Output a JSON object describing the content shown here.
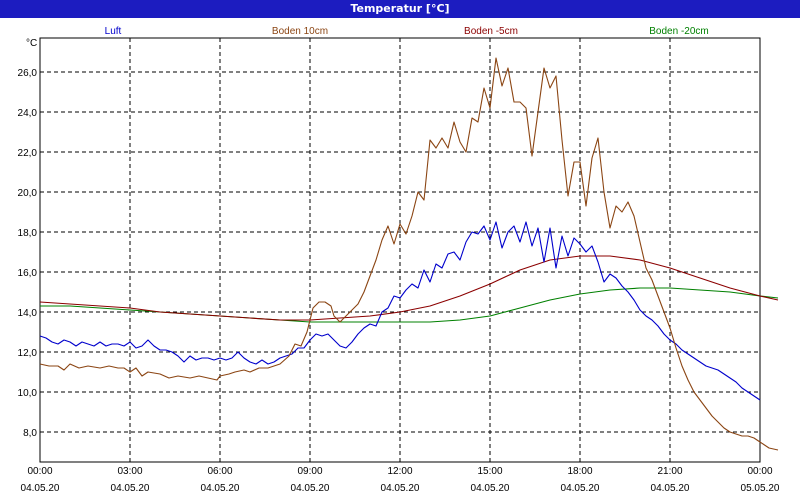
{
  "window": {
    "title": "Temperatur [°C]"
  },
  "chart_data": {
    "type": "line",
    "ylabel": "°C",
    "ylim": [
      6.5,
      27.7
    ],
    "xlim": [
      0,
      24
    ],
    "yticks": [
      8,
      10,
      12,
      14,
      16,
      18,
      20,
      22,
      24,
      26
    ],
    "ytick_labels": [
      "8,0",
      "10,0",
      "12,0",
      "14,0",
      "16,0",
      "18,0",
      "20,0",
      "22,0",
      "24,0",
      "26,0"
    ],
    "xticks": [
      {
        "time": "00:00",
        "date": "04.05.20"
      },
      {
        "time": "03:00",
        "date": "04.05.20"
      },
      {
        "time": "06:00",
        "date": "04.05.20"
      },
      {
        "time": "09:00",
        "date": "04.05.20"
      },
      {
        "time": "12:00",
        "date": "04.05.20"
      },
      {
        "time": "15:00",
        "date": "04.05.20"
      },
      {
        "time": "18:00",
        "date": "04.05.20"
      },
      {
        "time": "21:00",
        "date": "04.05.20"
      },
      {
        "time": "00:00",
        "date": "05.05.20"
      }
    ],
    "grid": true,
    "legend_position": "top",
    "series": [
      {
        "name": "Luft",
        "color": "#0000cc",
        "points": [
          [
            0,
            12.8
          ],
          [
            0.2,
            12.7
          ],
          [
            0.4,
            12.5
          ],
          [
            0.6,
            12.4
          ],
          [
            0.8,
            12.6
          ],
          [
            1.0,
            12.5
          ],
          [
            1.2,
            12.3
          ],
          [
            1.4,
            12.5
          ],
          [
            1.6,
            12.4
          ],
          [
            1.8,
            12.3
          ],
          [
            2.0,
            12.5
          ],
          [
            2.2,
            12.3
          ],
          [
            2.4,
            12.4
          ],
          [
            2.6,
            12.4
          ],
          [
            2.8,
            12.3
          ],
          [
            3.0,
            12.5
          ],
          [
            3.2,
            12.2
          ],
          [
            3.4,
            12.3
          ],
          [
            3.6,
            12.6
          ],
          [
            3.8,
            12.3
          ],
          [
            4.0,
            12.1
          ],
          [
            4.2,
            12.1
          ],
          [
            4.4,
            12.0
          ],
          [
            4.6,
            11.8
          ],
          [
            4.8,
            11.5
          ],
          [
            5.0,
            11.8
          ],
          [
            5.2,
            11.6
          ],
          [
            5.4,
            11.7
          ],
          [
            5.6,
            11.7
          ],
          [
            5.8,
            11.6
          ],
          [
            6.0,
            11.7
          ],
          [
            6.2,
            11.6
          ],
          [
            6.4,
            11.7
          ],
          [
            6.6,
            12.0
          ],
          [
            6.8,
            11.7
          ],
          [
            7.0,
            11.5
          ],
          [
            7.2,
            11.4
          ],
          [
            7.4,
            11.6
          ],
          [
            7.6,
            11.4
          ],
          [
            7.8,
            11.5
          ],
          [
            8.0,
            11.7
          ],
          [
            8.2,
            11.8
          ],
          [
            8.4,
            11.9
          ],
          [
            8.6,
            12.2
          ],
          [
            8.8,
            12.2
          ],
          [
            9.0,
            12.6
          ],
          [
            9.2,
            12.9
          ],
          [
            9.4,
            12.8
          ],
          [
            9.6,
            12.9
          ],
          [
            9.8,
            12.6
          ],
          [
            10.0,
            12.3
          ],
          [
            10.2,
            12.2
          ],
          [
            10.4,
            12.5
          ],
          [
            10.6,
            12.9
          ],
          [
            10.8,
            13.2
          ],
          [
            11.0,
            13.4
          ],
          [
            11.2,
            13.3
          ],
          [
            11.4,
            14.0
          ],
          [
            11.6,
            14.2
          ],
          [
            11.8,
            14.8
          ],
          [
            12.0,
            14.7
          ],
          [
            12.2,
            15.1
          ],
          [
            12.4,
            15.4
          ],
          [
            12.6,
            15.2
          ],
          [
            12.8,
            16.1
          ],
          [
            13.0,
            15.5
          ],
          [
            13.2,
            16.4
          ],
          [
            13.4,
            16.2
          ],
          [
            13.6,
            16.9
          ],
          [
            13.8,
            17.0
          ],
          [
            14.0,
            16.6
          ],
          [
            14.2,
            17.5
          ],
          [
            14.4,
            18.0
          ],
          [
            14.6,
            17.9
          ],
          [
            14.8,
            18.3
          ],
          [
            15.0,
            17.6
          ],
          [
            15.2,
            18.5
          ],
          [
            15.4,
            17.2
          ],
          [
            15.6,
            18.0
          ],
          [
            15.8,
            18.3
          ],
          [
            16.0,
            17.5
          ],
          [
            16.2,
            18.5
          ],
          [
            16.4,
            17.3
          ],
          [
            16.6,
            18.2
          ],
          [
            16.8,
            16.5
          ],
          [
            17.0,
            18.2
          ],
          [
            17.2,
            16.2
          ],
          [
            17.4,
            17.8
          ],
          [
            17.6,
            16.8
          ],
          [
            17.8,
            17.7
          ],
          [
            18.0,
            17.4
          ],
          [
            18.2,
            17.0
          ],
          [
            18.4,
            17.3
          ],
          [
            18.6,
            16.5
          ],
          [
            18.8,
            15.5
          ],
          [
            19.0,
            15.9
          ],
          [
            19.2,
            15.7
          ],
          [
            19.4,
            15.3
          ],
          [
            19.6,
            15.0
          ],
          [
            19.8,
            14.6
          ],
          [
            20.0,
            14.1
          ],
          [
            20.2,
            13.8
          ],
          [
            20.4,
            13.6
          ],
          [
            20.6,
            13.3
          ],
          [
            20.8,
            12.9
          ],
          [
            21.0,
            12.6
          ],
          [
            21.2,
            12.4
          ],
          [
            21.4,
            12.1
          ],
          [
            21.6,
            11.9
          ],
          [
            21.8,
            11.7
          ],
          [
            22.0,
            11.5
          ],
          [
            22.2,
            11.3
          ],
          [
            22.4,
            11.2
          ],
          [
            22.6,
            11.1
          ],
          [
            22.8,
            10.9
          ],
          [
            23.0,
            10.7
          ],
          [
            23.2,
            10.5
          ],
          [
            23.4,
            10.2
          ],
          [
            23.6,
            10.0
          ],
          [
            23.8,
            9.8
          ],
          [
            24.0,
            9.6
          ]
        ]
      },
      {
        "name": "Boden 10cm",
        "color": "#8b4513",
        "points": [
          [
            0,
            11.4
          ],
          [
            0.3,
            11.3
          ],
          [
            0.6,
            11.3
          ],
          [
            0.8,
            11.1
          ],
          [
            1.0,
            11.4
          ],
          [
            1.3,
            11.2
          ],
          [
            1.6,
            11.3
          ],
          [
            2.0,
            11.2
          ],
          [
            2.3,
            11.3
          ],
          [
            2.6,
            11.2
          ],
          [
            2.8,
            11.2
          ],
          [
            3.0,
            11.0
          ],
          [
            3.2,
            11.2
          ],
          [
            3.4,
            10.8
          ],
          [
            3.6,
            11.0
          ],
          [
            4.0,
            10.9
          ],
          [
            4.3,
            10.7
          ],
          [
            4.6,
            10.8
          ],
          [
            5.0,
            10.7
          ],
          [
            5.3,
            10.8
          ],
          [
            5.6,
            10.7
          ],
          [
            5.9,
            10.6
          ],
          [
            6.0,
            10.8
          ],
          [
            6.3,
            10.9
          ],
          [
            6.5,
            11.0
          ],
          [
            6.8,
            11.1
          ],
          [
            7.0,
            11.0
          ],
          [
            7.3,
            11.2
          ],
          [
            7.6,
            11.2
          ],
          [
            8.0,
            11.4
          ],
          [
            8.3,
            11.8
          ],
          [
            8.5,
            12.4
          ],
          [
            8.7,
            12.3
          ],
          [
            8.9,
            13.0
          ],
          [
            9.1,
            14.2
          ],
          [
            9.3,
            14.5
          ],
          [
            9.5,
            14.5
          ],
          [
            9.7,
            14.3
          ],
          [
            9.8,
            13.8
          ],
          [
            10.0,
            13.5
          ],
          [
            10.2,
            13.8
          ],
          [
            10.4,
            14.1
          ],
          [
            10.6,
            14.4
          ],
          [
            10.8,
            15.0
          ],
          [
            11.0,
            15.8
          ],
          [
            11.2,
            16.6
          ],
          [
            11.4,
            17.6
          ],
          [
            11.6,
            18.3
          ],
          [
            11.8,
            17.4
          ],
          [
            12.0,
            18.4
          ],
          [
            12.2,
            17.9
          ],
          [
            12.4,
            18.8
          ],
          [
            12.6,
            20.0
          ],
          [
            12.8,
            19.6
          ],
          [
            13.0,
            22.6
          ],
          [
            13.2,
            22.2
          ],
          [
            13.4,
            22.7
          ],
          [
            13.6,
            22.2
          ],
          [
            13.8,
            23.5
          ],
          [
            14.0,
            22.5
          ],
          [
            14.2,
            22.0
          ],
          [
            14.4,
            23.7
          ],
          [
            14.6,
            23.5
          ],
          [
            14.8,
            25.2
          ],
          [
            15.0,
            24.2
          ],
          [
            15.2,
            26.7
          ],
          [
            15.4,
            25.3
          ],
          [
            15.6,
            26.2
          ],
          [
            15.8,
            24.5
          ],
          [
            16.0,
            24.5
          ],
          [
            16.2,
            24.2
          ],
          [
            16.4,
            21.8
          ],
          [
            16.6,
            24.0
          ],
          [
            16.8,
            26.2
          ],
          [
            17.0,
            25.2
          ],
          [
            17.2,
            25.8
          ],
          [
            17.4,
            22.6
          ],
          [
            17.6,
            19.8
          ],
          [
            17.8,
            21.5
          ],
          [
            18.0,
            21.5
          ],
          [
            18.2,
            19.3
          ],
          [
            18.4,
            21.7
          ],
          [
            18.6,
            22.7
          ],
          [
            18.8,
            20.0
          ],
          [
            19.0,
            18.2
          ],
          [
            19.2,
            19.3
          ],
          [
            19.4,
            19.0
          ],
          [
            19.6,
            19.5
          ],
          [
            19.8,
            18.8
          ],
          [
            20.0,
            17.5
          ],
          [
            20.2,
            16.2
          ],
          [
            20.4,
            15.6
          ],
          [
            20.6,
            14.8
          ],
          [
            20.8,
            14.0
          ],
          [
            21.0,
            13.2
          ],
          [
            21.2,
            12.2
          ],
          [
            21.4,
            11.3
          ],
          [
            21.6,
            10.6
          ],
          [
            21.8,
            10.0
          ],
          [
            22.0,
            9.6
          ],
          [
            22.2,
            9.2
          ],
          [
            22.4,
            8.8
          ],
          [
            22.6,
            8.5
          ],
          [
            22.8,
            8.2
          ],
          [
            23.0,
            8.0
          ],
          [
            23.2,
            7.9
          ],
          [
            23.4,
            7.8
          ],
          [
            23.6,
            7.8
          ],
          [
            23.8,
            7.7
          ],
          [
            24.0,
            7.5
          ],
          [
            24.3,
            7.2
          ],
          [
            24.6,
            7.1
          ]
        ]
      },
      {
        "name": "Boden -5cm",
        "color": "#8b0000",
        "points": [
          [
            0,
            14.5
          ],
          [
            1,
            14.4
          ],
          [
            2,
            14.3
          ],
          [
            3,
            14.2
          ],
          [
            4,
            14.0
          ],
          [
            5,
            13.9
          ],
          [
            6,
            13.8
          ],
          [
            7,
            13.7
          ],
          [
            8,
            13.6
          ],
          [
            9,
            13.6
          ],
          [
            10,
            13.7
          ],
          [
            11,
            13.8
          ],
          [
            12,
            14.0
          ],
          [
            13,
            14.3
          ],
          [
            14,
            14.8
          ],
          [
            15,
            15.4
          ],
          [
            16,
            16.1
          ],
          [
            17,
            16.6
          ],
          [
            18,
            16.8
          ],
          [
            19,
            16.8
          ],
          [
            20,
            16.6
          ],
          [
            21,
            16.2
          ],
          [
            22,
            15.7
          ],
          [
            23,
            15.2
          ],
          [
            24,
            14.8
          ],
          [
            24.6,
            14.6
          ]
        ]
      },
      {
        "name": "Boden -20cm",
        "color": "#008000",
        "points": [
          [
            0,
            14.3
          ],
          [
            1,
            14.3
          ],
          [
            2,
            14.2
          ],
          [
            3,
            14.1
          ],
          [
            4,
            14.0
          ],
          [
            5,
            13.9
          ],
          [
            6,
            13.8
          ],
          [
            7,
            13.7
          ],
          [
            8,
            13.6
          ],
          [
            9,
            13.5
          ],
          [
            10,
            13.5
          ],
          [
            11,
            13.5
          ],
          [
            12,
            13.5
          ],
          [
            13,
            13.5
          ],
          [
            14,
            13.6
          ],
          [
            15,
            13.8
          ],
          [
            16,
            14.2
          ],
          [
            17,
            14.6
          ],
          [
            18,
            14.9
          ],
          [
            19,
            15.1
          ],
          [
            20,
            15.2
          ],
          [
            21,
            15.2
          ],
          [
            22,
            15.1
          ],
          [
            23,
            15.0
          ],
          [
            24,
            14.8
          ],
          [
            24.6,
            14.7
          ]
        ]
      }
    ]
  }
}
